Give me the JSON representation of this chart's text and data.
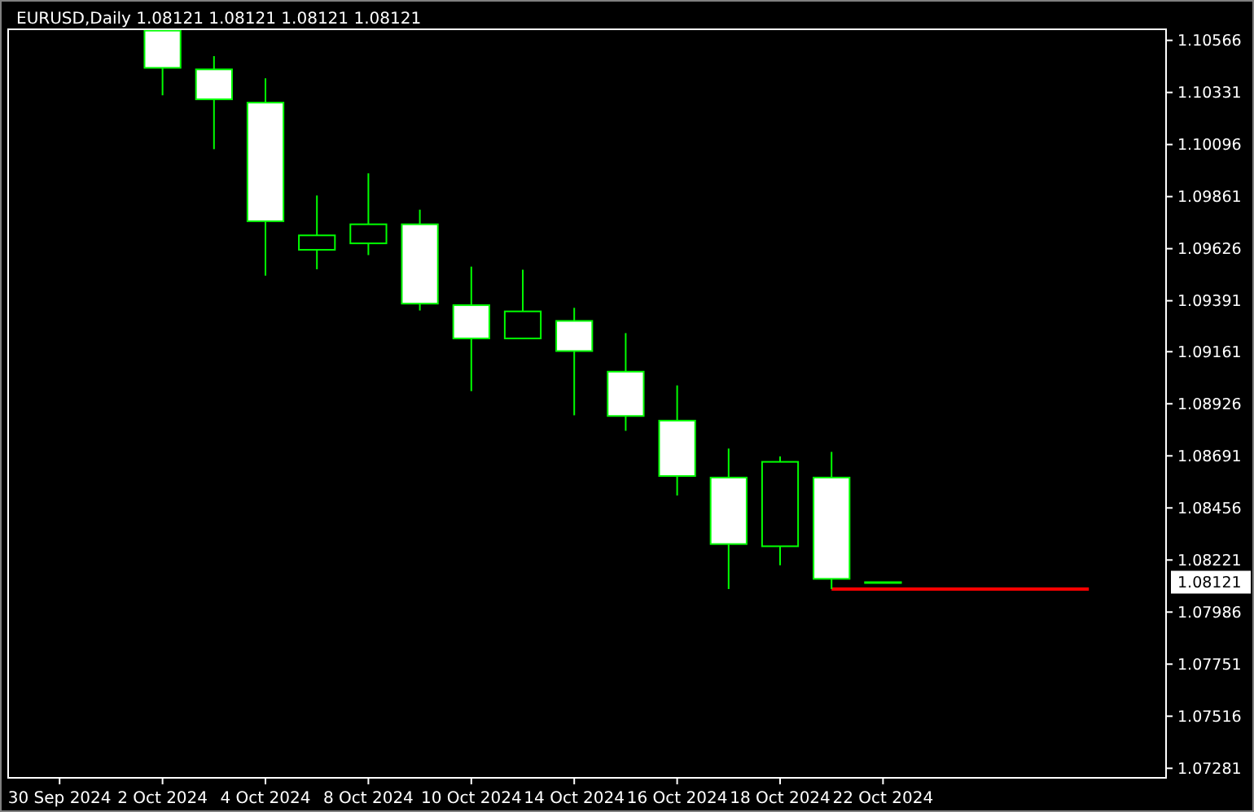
{
  "chart_data": {
    "type": "candlestick",
    "title": "EURUSD,Daily 1.08121 1.08121 1.08121 1.08121",
    "categories": [
      "30 Sep 2024",
      null,
      "2 Oct 2024",
      null,
      "4 Oct 2024",
      null,
      "8 Oct 2024",
      null,
      "10 Oct 2024",
      null,
      "14 Oct 2024",
      null,
      "16 Oct 2024",
      null,
      "18 Oct 2024",
      null,
      "22 Oct 2024",
      null,
      null,
      null,
      null,
      null
    ],
    "ohlc": [
      null,
      null,
      [
        1.1061,
        1.1061,
        1.10318,
        1.10442
      ],
      [
        1.10435,
        1.10495,
        1.10075,
        1.103
      ],
      [
        1.10285,
        1.10395,
        1.09504,
        1.0975
      ],
      [
        1.09621,
        1.09866,
        1.09533,
        1.09686
      ],
      [
        1.0965,
        1.09966,
        1.09597,
        1.09736
      ],
      [
        1.09736,
        1.09802,
        1.09347,
        1.09378
      ],
      [
        1.09371,
        1.09545,
        1.08983,
        1.09221
      ],
      [
        1.09221,
        1.09531,
        1.09221,
        1.09343
      ],
      [
        1.093,
        1.09359,
        1.08874,
        1.09164
      ],
      [
        1.09071,
        1.09245,
        1.08804,
        1.08871
      ],
      [
        1.0885,
        1.09009,
        1.08512,
        1.086
      ],
      [
        1.08593,
        1.08724,
        1.0809,
        1.08293
      ],
      [
        1.08283,
        1.08688,
        1.08197,
        1.08664
      ],
      [
        1.08593,
        1.08709,
        1.0809,
        1.08136
      ],
      [
        1.08121,
        1.08121,
        1.08121,
        1.08121
      ],
      null,
      null,
      null,
      null,
      null
    ],
    "color": "#00ff00",
    "colors": [
      null,
      null,
      "#ffffff",
      "#ffffff",
      "#ffffff",
      "#000000",
      "#000000",
      "#ffffff",
      "#ffffff",
      "#000000",
      "#ffffff",
      "#ffffff",
      "#ffffff",
      "#ffffff",
      "#000000",
      "#ffffff",
      "#000000",
      null,
      null,
      null,
      null,
      null
    ],
    "series": [
      {
        "type": "line",
        "color": "#ff0000",
        "values": [
          null,
          null,
          null,
          null,
          null,
          null,
          null,
          null,
          null,
          null,
          null,
          null,
          null,
          null,
          null,
          1.0809,
          1.0809,
          1.0809,
          1.0809,
          1.0809,
          1.0809,
          null
        ]
      }
    ],
    "annotations": [
      "1.08121"
    ],
    "ylim": [
      1.07238,
      1.10616
    ],
    "yticks": [
      1.10566,
      1.10331,
      1.10096,
      1.09861,
      1.09626,
      1.09391,
      1.09161,
      1.08926,
      1.08691,
      1.08456,
      1.08221,
      1.07986,
      1.07751,
      1.07516,
      1.07281
    ],
    "grid": false
  }
}
